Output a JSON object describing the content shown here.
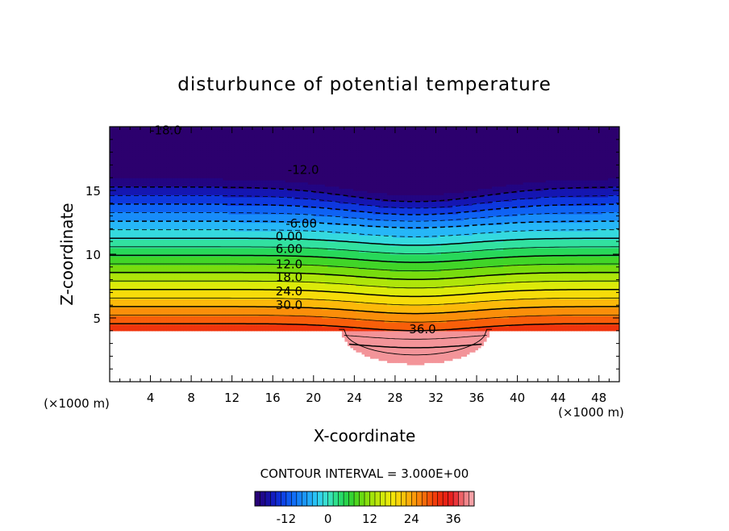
{
  "chart_data": {
    "type": "heatmap",
    "title": "disturbunce of potential temperature",
    "xlabel": "X-coordinate",
    "ylabel": "Z-coordinate",
    "x_unit": "(×1000 m)",
    "z_unit": "(×1000 m)",
    "xlim": [
      0,
      50
    ],
    "ylim": [
      0,
      20
    ],
    "x_ticks": [
      "4",
      "8",
      "12",
      "16",
      "20",
      "24",
      "28",
      "32",
      "36",
      "40",
      "44",
      "48"
    ],
    "y_ticks": [
      "5",
      "10",
      "15"
    ],
    "contour_interval_text": "CONTOUR INTERVAL = 3.000E+00",
    "contour_labels": [
      {
        "text": "-18.0",
        "x": 5.5,
        "z": 19.7
      },
      {
        "text": "-12.0",
        "x": 19.0,
        "z": 16.6
      },
      {
        "text": "-6.00",
        "x": 18.8,
        "z": 12.4
      },
      {
        "text": "0.00",
        "x": 17.6,
        "z": 11.4
      },
      {
        "text": "6.00",
        "x": 17.6,
        "z": 10.4
      },
      {
        "text": "12.0",
        "x": 17.6,
        "z": 9.2
      },
      {
        "text": "18.0",
        "x": 17.6,
        "z": 8.2
      },
      {
        "text": "24.0",
        "x": 17.6,
        "z": 7.1
      },
      {
        "text": "30.0",
        "x": 17.6,
        "z": 6.0
      },
      {
        "text": "36.0",
        "x": 30.7,
        "z": 4.1
      }
    ],
    "colorbar": {
      "ticks": [
        "-12",
        "0",
        "12",
        "24",
        "36"
      ],
      "tick_values": [
        -12,
        0,
        12,
        24,
        36
      ],
      "range": [
        -21,
        42
      ]
    },
    "field_summary": "Potential temperature disturbance from about -21 near z=20 km to about 40 near the surface; white (undefined) region below z≈4 km, with a warm dome between x≈24 and x≈37 extending down to z≈2 km."
  }
}
